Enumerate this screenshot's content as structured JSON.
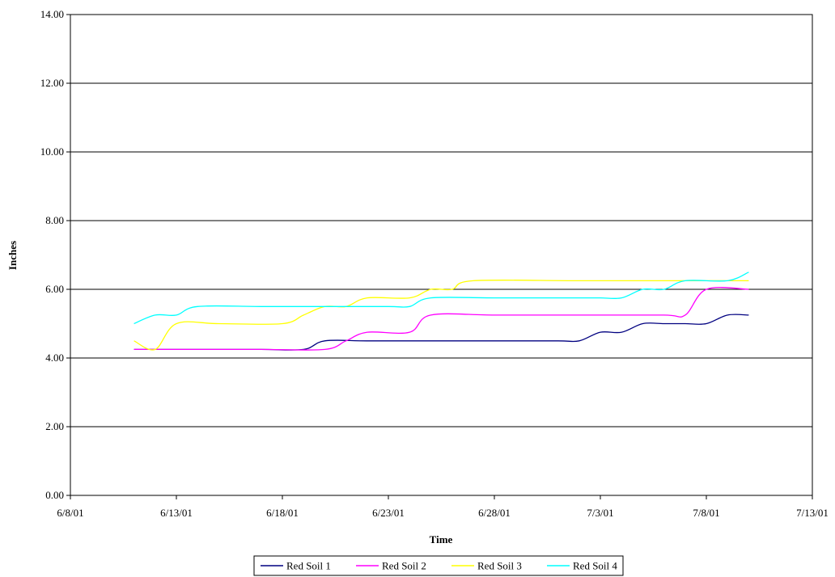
{
  "chart_data": {
    "type": "line",
    "title": "",
    "xlabel": "Time",
    "ylabel": "Inches",
    "ylim": [
      0,
      14
    ],
    "yticks": [
      "0.00",
      "2.00",
      "4.00",
      "6.00",
      "8.00",
      "10.00",
      "12.00",
      "14.00"
    ],
    "xlim": [
      "6/8/01",
      "7/13/01"
    ],
    "xticks": [
      "6/8/01",
      "6/13/01",
      "6/18/01",
      "6/23/01",
      "6/28/01",
      "7/3/01",
      "7/8/01",
      "7/13/01"
    ],
    "grid": "horizontal",
    "legend": "bottom",
    "series": [
      {
        "name": "Red Soil 1",
        "color": "#000080",
        "points": [
          [
            "6/11/01",
            4.25
          ],
          [
            "6/14/01",
            4.25
          ],
          [
            "6/17/01",
            4.25
          ],
          [
            "6/19/01",
            4.25
          ],
          [
            "6/20/01",
            4.5
          ],
          [
            "6/22/01",
            4.5
          ],
          [
            "6/25/01",
            4.5
          ],
          [
            "6/28/01",
            4.5
          ],
          [
            "7/1/01",
            4.5
          ],
          [
            "7/2/01",
            4.5
          ],
          [
            "7/3/01",
            4.75
          ],
          [
            "7/4/01",
            4.75
          ],
          [
            "7/5/01",
            5.0
          ],
          [
            "7/6/01",
            5.0
          ],
          [
            "7/7/01",
            5.0
          ],
          [
            "7/8/01",
            5.0
          ],
          [
            "7/9/01",
            5.25
          ],
          [
            "7/10/01",
            5.25
          ]
        ]
      },
      {
        "name": "Red Soil 2",
        "color": "#FF00FF",
        "points": [
          [
            "6/11/01",
            4.25
          ],
          [
            "6/14/01",
            4.25
          ],
          [
            "6/17/01",
            4.25
          ],
          [
            "6/20/01",
            4.25
          ],
          [
            "6/21/01",
            4.5
          ],
          [
            "6/22/01",
            4.75
          ],
          [
            "6/24/01",
            4.75
          ],
          [
            "6/25/01",
            5.25
          ],
          [
            "6/28/01",
            5.25
          ],
          [
            "7/2/01",
            5.25
          ],
          [
            "7/6/01",
            5.25
          ],
          [
            "7/7/01",
            5.25
          ],
          [
            "7/8/01",
            6.0
          ],
          [
            "7/10/01",
            6.0
          ]
        ]
      },
      {
        "name": "Red Soil 3",
        "color": "#FFFF00",
        "points": [
          [
            "6/11/01",
            4.5
          ],
          [
            "6/12/01",
            4.25
          ],
          [
            "6/13/01",
            5.0
          ],
          [
            "6/15/01",
            5.0
          ],
          [
            "6/18/01",
            5.0
          ],
          [
            "6/19/01",
            5.25
          ],
          [
            "6/20/01",
            5.5
          ],
          [
            "6/21/01",
            5.5
          ],
          [
            "6/22/01",
            5.75
          ],
          [
            "6/24/01",
            5.75
          ],
          [
            "6/25/01",
            6.0
          ],
          [
            "6/26/01",
            6.0
          ],
          [
            "6/27/01",
            6.25
          ],
          [
            "7/2/01",
            6.25
          ],
          [
            "7/7/01",
            6.25
          ],
          [
            "7/10/01",
            6.25
          ]
        ]
      },
      {
        "name": "Red Soil 4",
        "color": "#00FFFF",
        "points": [
          [
            "6/11/01",
            5.0
          ],
          [
            "6/12/01",
            5.25
          ],
          [
            "6/13/01",
            5.25
          ],
          [
            "6/14/01",
            5.5
          ],
          [
            "6/17/01",
            5.5
          ],
          [
            "6/20/01",
            5.5
          ],
          [
            "6/23/01",
            5.5
          ],
          [
            "6/24/01",
            5.5
          ],
          [
            "6/25/01",
            5.75
          ],
          [
            "6/28/01",
            5.75
          ],
          [
            "7/2/01",
            5.75
          ],
          [
            "7/3/01",
            5.75
          ],
          [
            "7/4/01",
            5.75
          ],
          [
            "7/5/01",
            6.0
          ],
          [
            "7/6/01",
            6.0
          ],
          [
            "7/7/01",
            6.25
          ],
          [
            "7/9/01",
            6.25
          ],
          [
            "7/10/01",
            6.5
          ]
        ]
      }
    ]
  }
}
